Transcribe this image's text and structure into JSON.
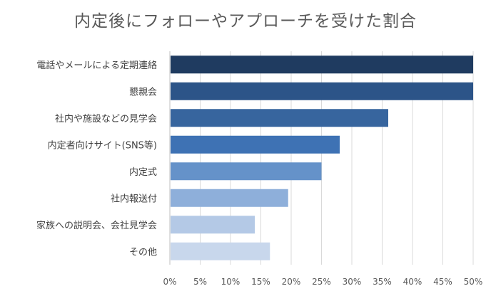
{
  "chart_data": {
    "type": "bar",
    "orientation": "horizontal",
    "title": "内定後にフォローやアプローチを受けた割合",
    "xlabel": "",
    "ylabel": "",
    "categories": [
      "電話やメールによる定期連絡",
      "懇親会",
      "社内や施設などの見学会",
      "内定者向けサイト(SNS等)",
      "内定式",
      "社内報送付",
      "家族への説明会、会社見学会",
      "その他"
    ],
    "values": [
      50,
      50,
      36,
      28,
      25,
      19.5,
      14,
      16.5
    ],
    "colors": [
      "#1f3b60",
      "#2c5488",
      "#37659e",
      "#3e72b4",
      "#6592c9",
      "#8eafda",
      "#b4c9e6",
      "#c8d7ec"
    ],
    "xlim": [
      0,
      50
    ],
    "ticks": [
      "0%",
      "5%",
      "10%",
      "15%",
      "20%",
      "25%",
      "30%",
      "35%",
      "40%",
      "45%",
      "50%"
    ],
    "grid": "vertical",
    "legend": "none"
  }
}
